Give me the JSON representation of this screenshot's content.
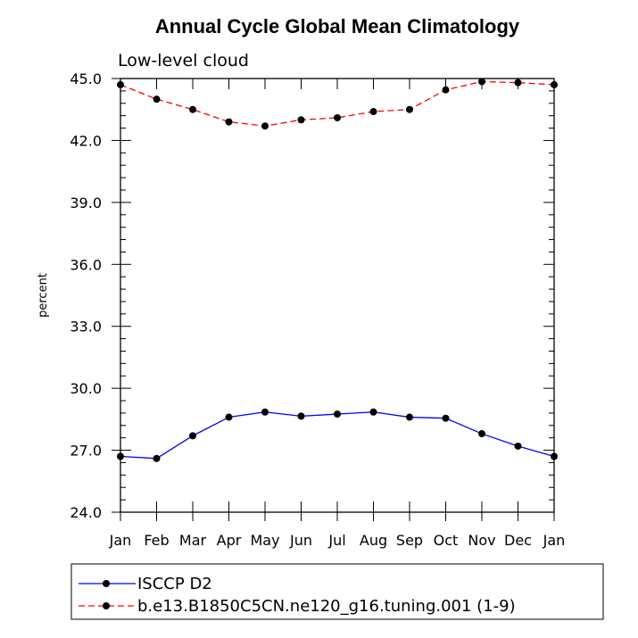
{
  "chart_data": {
    "type": "line",
    "title": "Annual Cycle Global Mean Climatology",
    "subtitle": "Low-level cloud",
    "ylabel": "percent",
    "xlabel": "",
    "categories": [
      "Jan",
      "Feb",
      "Mar",
      "Apr",
      "May",
      "Jun",
      "Jul",
      "Aug",
      "Sep",
      "Oct",
      "Nov",
      "Dec",
      "Jan"
    ],
    "ylim": [
      24.0,
      45.0
    ],
    "yticks": [
      "24.0",
      "27.0",
      "30.0",
      "33.0",
      "36.0",
      "39.0",
      "42.0",
      "45.0"
    ],
    "grid": false,
    "legend_position": "bottom",
    "series": [
      {
        "name": "ISCCP D2",
        "color": "#0000ff",
        "line_style": "solid",
        "values": [
          26.7,
          26.6,
          27.7,
          28.6,
          28.85,
          28.65,
          28.75,
          28.85,
          28.6,
          28.55,
          27.8,
          27.2,
          26.7
        ]
      },
      {
        "name": "b.e13.B1850C5CN.ne120_g16.tuning.001 (1-9)",
        "color": "#ff0000",
        "line_style": "dashed",
        "values": [
          44.7,
          44.0,
          43.5,
          42.9,
          42.7,
          43.0,
          43.1,
          43.4,
          43.5,
          44.45,
          44.85,
          44.8,
          44.7
        ]
      }
    ]
  }
}
